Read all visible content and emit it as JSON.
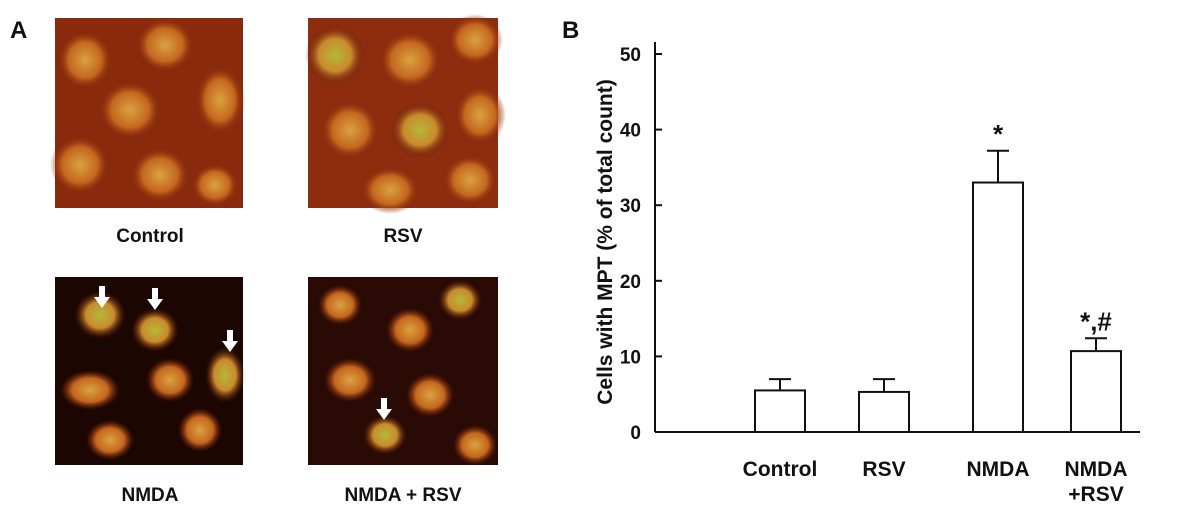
{
  "panels": {
    "a": {
      "label": "A",
      "captions": [
        "Control",
        "RSV",
        "NMDA",
        "NMDA + RSV"
      ]
    },
    "b": {
      "label": "B"
    }
  },
  "chart_data": {
    "type": "bar",
    "ylabel": "Cells with MPT (% of total count)",
    "categories": [
      "Control",
      "RSV",
      "NMDA",
      "NMDA +RSV"
    ],
    "values": [
      5.5,
      5.3,
      33,
      10.7
    ],
    "errors": [
      1.5,
      1.7,
      4.2,
      1.7
    ],
    "annotations": [
      null,
      null,
      "*",
      "*,#"
    ],
    "color": "#ffffff",
    "ylim": [
      0,
      50
    ],
    "yticks": [
      0,
      10,
      20,
      30,
      40,
      50
    ]
  }
}
